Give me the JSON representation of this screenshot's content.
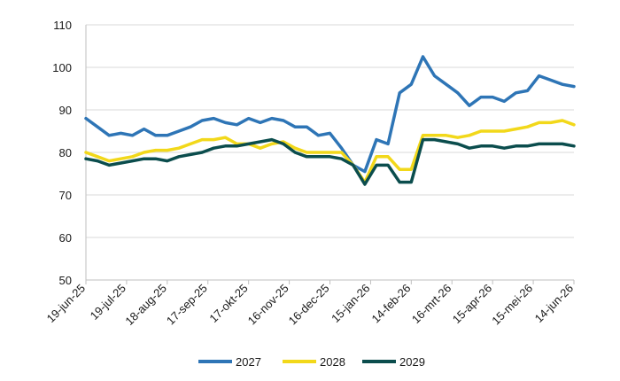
{
  "chart_data": {
    "type": "line",
    "title": "",
    "xlabel": "",
    "ylabel": "",
    "ylim": [
      50,
      110
    ],
    "yticks": [
      50,
      60,
      70,
      80,
      90,
      100,
      110
    ],
    "grid": "horizontal",
    "legend_position": "bottom",
    "x_tick_labels": [
      "19-jun-25",
      "19-jul-25",
      "18-aug-25",
      "17-sep-25",
      "17-okt-25",
      "16-nov-25",
      "16-dec-25",
      "15-jan-26",
      "14-feb-26",
      "16-mrt-26",
      "15-apr-26",
      "15-mei-26",
      "14-jun-26"
    ],
    "series": [
      {
        "name": "2027",
        "color": "#2e75b6",
        "values": [
          88,
          86,
          84,
          84.5,
          84,
          85.5,
          84,
          84,
          85,
          86,
          87.5,
          88,
          87,
          86.5,
          88,
          87,
          88,
          87.5,
          86,
          86,
          84,
          84.5,
          81,
          77,
          75.5,
          83,
          82,
          94,
          96,
          102.5,
          98,
          96,
          94,
          91,
          93,
          93,
          92,
          94,
          94.5,
          98,
          97,
          96,
          95.5
        ]
      },
      {
        "name": "2028",
        "color": "#f2d81a",
        "values": [
          80,
          79,
          78,
          78.5,
          79,
          80,
          80.5,
          80.5,
          81,
          82,
          83,
          83,
          83.5,
          82,
          82,
          81,
          82,
          82.5,
          81,
          80,
          80,
          80,
          80,
          77,
          73,
          79,
          79,
          76,
          76,
          84,
          84,
          84,
          83.5,
          84,
          85,
          85,
          85,
          85.5,
          86,
          87,
          87,
          87.5,
          86.5
        ]
      },
      {
        "name": "2029",
        "color": "#0b4d4d",
        "values": [
          78.5,
          78,
          77,
          77.5,
          78,
          78.5,
          78.5,
          78,
          79,
          79.5,
          80,
          81,
          81.5,
          81.5,
          82,
          82.5,
          83,
          82,
          80,
          79,
          79,
          79,
          78.5,
          77,
          72.5,
          77,
          77,
          73,
          73,
          83,
          83,
          82.5,
          82,
          81,
          81.5,
          81.5,
          81,
          81.5,
          81.5,
          82,
          82,
          82,
          81.5
        ]
      }
    ]
  }
}
